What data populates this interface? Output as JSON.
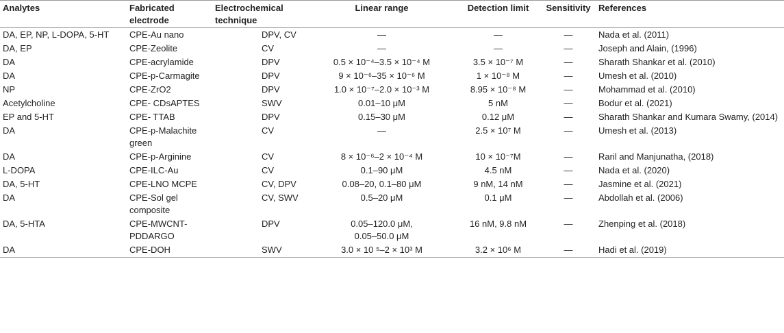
{
  "table": {
    "headers": [
      "Analytes",
      "Fabricated electrode",
      "Electrochemical technique",
      "Linear range",
      "Detection limit",
      "Sensitivity",
      "References"
    ],
    "rows": [
      [
        "DA, EP, NP, L-DOPA, 5-HT",
        "CPE-Au nano",
        "DPV, CV",
        "—",
        "—",
        "—",
        "Nada et al. (2011)"
      ],
      [
        "DA, EP",
        "CPE-Zeolite",
        "CV",
        "—",
        "—",
        "—",
        "Joseph and Alain, (1996)"
      ],
      [
        "DA",
        "CPE-acrylamide",
        "DPV",
        "0.5 × 10⁻⁴–3.5 × 10⁻⁴ M",
        "3.5 × 10⁻⁷ M",
        "—",
        "Sharath Shankar et al. (2010)"
      ],
      [
        "DA",
        "CPE-p-Carmagite",
        "DPV",
        "9 × 10⁻⁶–35 × 10⁻⁶ M",
        "1 × 10⁻⁸ M",
        "—",
        "Umesh et al. (2010)"
      ],
      [
        "NP",
        "CPE-ZrO2",
        "DPV",
        "1.0 × 10⁻⁷–2.0 × 10⁻³ M",
        "8.95 × 10⁻⁸ M",
        "—",
        "Mohammad et al. (2010)"
      ],
      [
        "Acetylcholine",
        "CPE- CDsAPTES",
        "SWV",
        "0.01–10 μM",
        "5 nM",
        "—",
        "Bodur et al. (2021)"
      ],
      [
        "EP and 5-HT",
        "CPE- TTAB",
        "DPV",
        "0.15–30 μM",
        "0.12 μM",
        "—",
        "Sharath Shankar and Kumara Swamy, (2014)"
      ],
      [
        "DA",
        "CPE-p-Malachite green",
        "CV",
        "—",
        "2.5 × 10⁷ M",
        "—",
        "Umesh et al. (2013)"
      ],
      [
        "DA",
        "CPE-p-Arginine",
        "CV",
        "8 × 10⁻⁶–2 × 10⁻⁴ M",
        "10 × 10⁻⁷M",
        "—",
        "Raril and Manjunatha, (2018)"
      ],
      [
        "L-DOPA",
        "CPE-ILC-Au",
        "CV",
        "0.1–90 μM",
        "4.5 nM",
        "—",
        "Nada et al. (2020)"
      ],
      [
        "DA, 5-HT",
        "CPE-LNO MCPE",
        "CV, DPV",
        "0.08–20, 0.1–80 μM",
        "9 nM, 14 nM",
        "—",
        "Jasmine et al. (2021)"
      ],
      [
        "DA",
        "CPE-Sol gel composite",
        "CV, SWV",
        "0.5–20 μM",
        "0.1 μM",
        "—",
        "Abdollah et al. (2006)"
      ],
      [
        "DA, 5-HTA",
        "CPE-MWCNT-PDDARGO",
        "DPV",
        "0.05–120.0 μM, 0.05–50.0 μM",
        "16 nM, 9.8 nM",
        "—",
        "Zhenping et al. (2018)"
      ],
      [
        "DA",
        "CPE-DOH",
        "SWV",
        "3.0 × 10 ⁵–2 × 10³ M",
        "3.2 × 10⁶ M",
        "—",
        "Hadi et al. (2019)"
      ]
    ]
  }
}
